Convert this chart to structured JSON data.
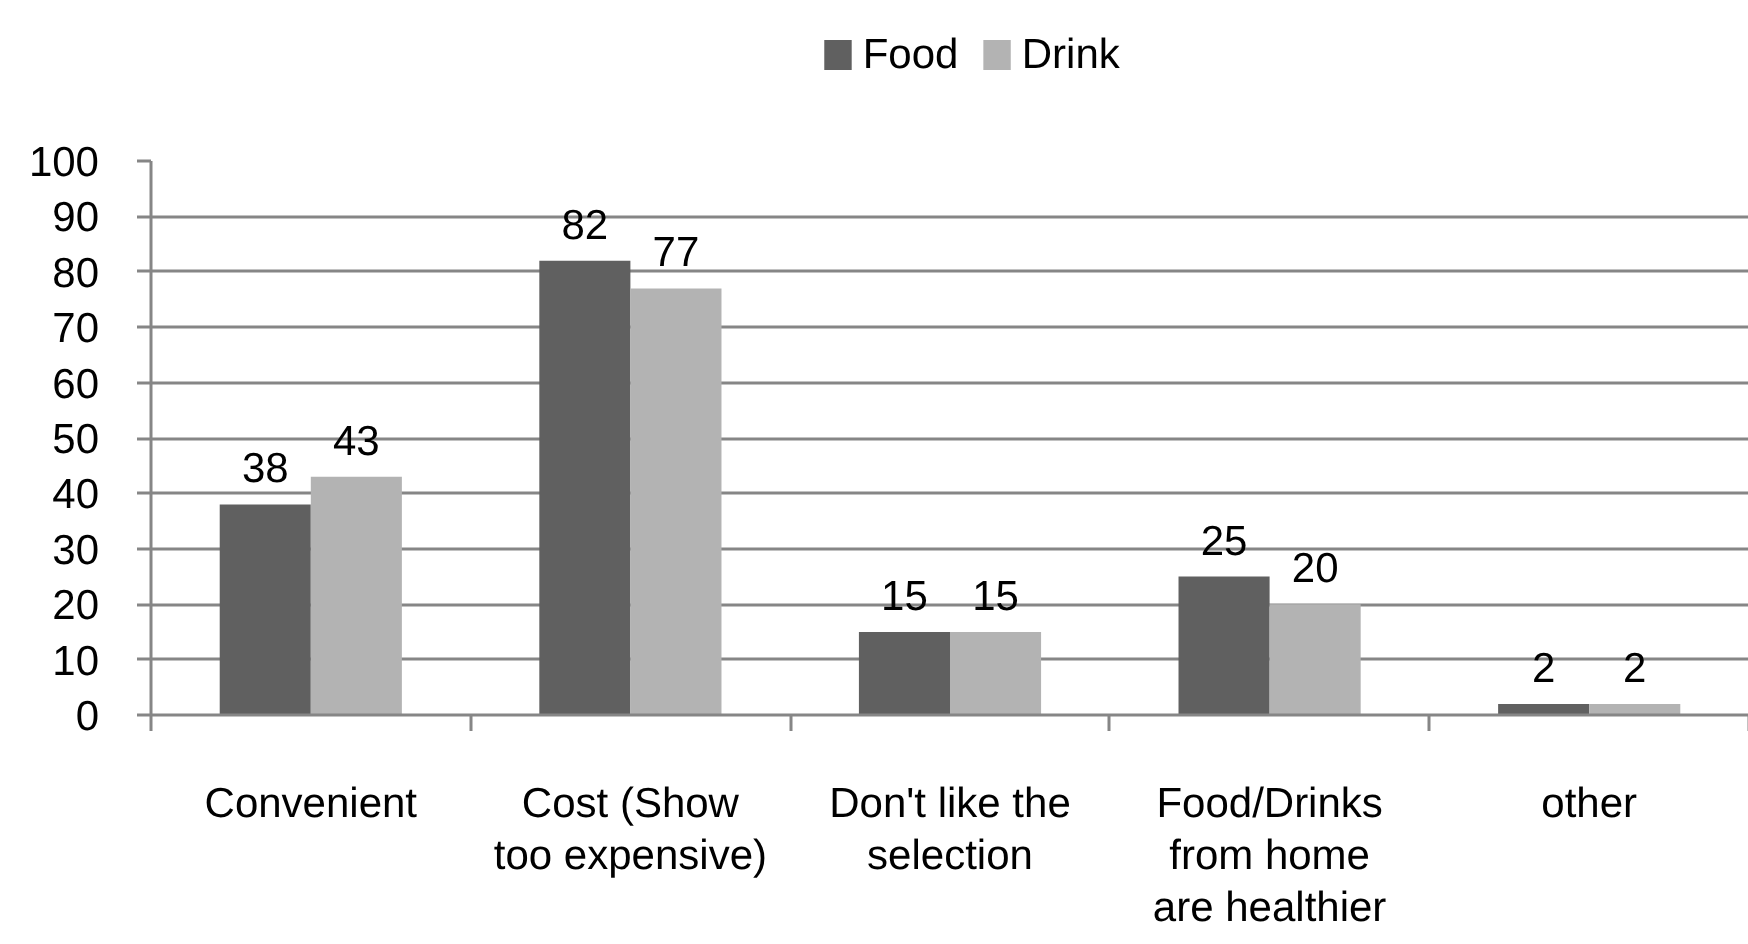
{
  "chart_data": {
    "type": "bar",
    "categories": [
      "Convenient",
      "Cost (Show\ntoo expensive)",
      "Don't like the\nselection",
      "Food/Drinks\nfrom home\nare healthier",
      "other"
    ],
    "series": [
      {
        "name": "Food",
        "color": "#606060",
        "values": [
          38,
          82,
          15,
          25,
          2
        ]
      },
      {
        "name": "Drink",
        "color": "#b3b3b3",
        "values": [
          43,
          77,
          15,
          20,
          2
        ]
      }
    ],
    "ylim": [
      0,
      100
    ],
    "yticks": [
      0,
      10,
      20,
      30,
      40,
      50,
      60,
      70,
      80,
      90,
      100
    ],
    "grid": "y",
    "legend": "top",
    "data_labels": true
  }
}
